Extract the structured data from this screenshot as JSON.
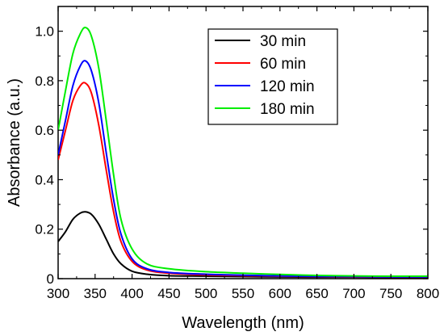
{
  "chart_data": {
    "type": "line",
    "title": "",
    "xlabel": "Wavelength (nm)",
    "ylabel": "Absorbance (a.u.)",
    "xlim": [
      300,
      800
    ],
    "ylim": [
      0,
      1.1
    ],
    "x_ticks": [
      300,
      350,
      400,
      450,
      500,
      550,
      600,
      650,
      700,
      750,
      800
    ],
    "y_ticks": [
      0,
      0.2,
      0.4,
      0.6,
      0.8,
      1.0
    ],
    "y_tick_labels": [
      "0",
      "0.2",
      "0.4",
      "0.6",
      "0.8",
      "1.0"
    ],
    "grid": false,
    "legend_position": "top-right",
    "x": [
      300,
      310,
      320,
      330,
      337,
      345,
      355,
      365,
      375,
      385,
      400,
      420,
      450,
      500,
      550,
      600,
      650,
      700,
      750,
      800
    ],
    "series": [
      {
        "name": "30 min",
        "color": "#000000",
        "values": [
          0.15,
          0.19,
          0.24,
          0.265,
          0.27,
          0.26,
          0.22,
          0.16,
          0.1,
          0.06,
          0.03,
          0.018,
          0.012,
          0.01,
          0.008,
          0.007,
          0.006,
          0.006,
          0.005,
          0.005
        ]
      },
      {
        "name": "60 min",
        "color": "#ff0000",
        "values": [
          0.48,
          0.6,
          0.72,
          0.78,
          0.79,
          0.75,
          0.62,
          0.44,
          0.27,
          0.15,
          0.07,
          0.035,
          0.022,
          0.015,
          0.012,
          0.01,
          0.008,
          0.007,
          0.006,
          0.006
        ]
      },
      {
        "name": "120 min",
        "color": "#0000ff",
        "values": [
          0.5,
          0.64,
          0.78,
          0.86,
          0.88,
          0.84,
          0.71,
          0.51,
          0.32,
          0.18,
          0.08,
          0.04,
          0.025,
          0.018,
          0.014,
          0.011,
          0.009,
          0.008,
          0.007,
          0.007
        ]
      },
      {
        "name": "180 min",
        "color": "#00ee00",
        "values": [
          0.6,
          0.76,
          0.91,
          0.99,
          1.015,
          0.98,
          0.85,
          0.64,
          0.42,
          0.24,
          0.12,
          0.06,
          0.04,
          0.028,
          0.022,
          0.017,
          0.013,
          0.011,
          0.01,
          0.01
        ]
      }
    ]
  }
}
